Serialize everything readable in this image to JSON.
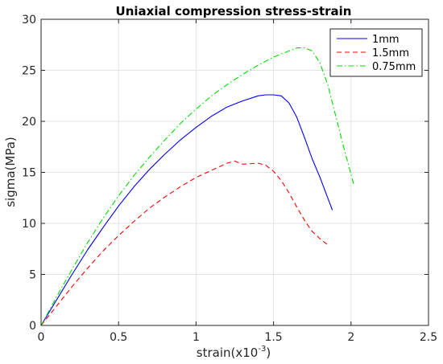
{
  "chart_data": {
    "type": "line",
    "title": "Uniaxial compression stress-strain",
    "xlabel": "strain(x10",
    "xlabel_exp": "-3",
    "xlabel_close": ")",
    "ylabel": "sigma(MPa)",
    "xlim": [
      0,
      2.5
    ],
    "ylim": [
      0,
      30
    ],
    "xticks": [
      0,
      0.5,
      1,
      1.5,
      2,
      2.5
    ],
    "xtick_labels": [
      "0",
      "0.5",
      "1",
      "1.5",
      "2",
      "2.5"
    ],
    "yticks": [
      0,
      5,
      10,
      15,
      20,
      25,
      30
    ],
    "ytick_labels": [
      "0",
      "5",
      "10",
      "15",
      "20",
      "25",
      "30"
    ],
    "grid": true,
    "legend_position": "top-right",
    "series": [
      {
        "name": "1mm",
        "color": "#0000ff",
        "style": "solid",
        "x": [
          0,
          0.1,
          0.2,
          0.3,
          0.4,
          0.5,
          0.6,
          0.7,
          0.8,
          0.9,
          1.0,
          1.1,
          1.2,
          1.3,
          1.4,
          1.45,
          1.5,
          1.55,
          1.6,
          1.65,
          1.7,
          1.75,
          1.8,
          1.85,
          1.88
        ],
        "y": [
          0,
          2.5,
          5.0,
          7.4,
          9.6,
          11.7,
          13.6,
          15.3,
          16.8,
          18.2,
          19.4,
          20.5,
          21.4,
          22.0,
          22.5,
          22.6,
          22.6,
          22.5,
          21.8,
          20.4,
          18.4,
          16.3,
          14.5,
          12.5,
          11.3
        ]
      },
      {
        "name": "1.5mm",
        "color": "#ff0000",
        "style": "dashed",
        "x": [
          0,
          0.1,
          0.2,
          0.3,
          0.4,
          0.5,
          0.6,
          0.7,
          0.8,
          0.9,
          1.0,
          1.1,
          1.2,
          1.25,
          1.3,
          1.4,
          1.45,
          1.5,
          1.55,
          1.6,
          1.65,
          1.7,
          1.75,
          1.8,
          1.85
        ],
        "y": [
          0,
          1.9,
          3.8,
          5.6,
          7.3,
          8.8,
          10.2,
          11.5,
          12.6,
          13.6,
          14.5,
          15.2,
          15.9,
          16.1,
          15.8,
          15.9,
          15.7,
          15.1,
          14.2,
          13.0,
          11.6,
          10.3,
          9.2,
          8.5,
          7.9
        ]
      },
      {
        "name": "0.75mm",
        "color": "#00dd00",
        "style": "dashdot",
        "x": [
          0,
          0.1,
          0.2,
          0.3,
          0.4,
          0.5,
          0.6,
          0.7,
          0.8,
          0.9,
          1.0,
          1.1,
          1.2,
          1.3,
          1.4,
          1.5,
          1.6,
          1.65,
          1.7,
          1.75,
          1.8,
          1.85,
          1.9,
          1.95,
          2.0,
          2.02
        ],
        "y": [
          0,
          2.8,
          5.5,
          8.1,
          10.5,
          12.7,
          14.7,
          16.5,
          18.2,
          19.8,
          21.2,
          22.5,
          23.6,
          24.6,
          25.5,
          26.3,
          26.9,
          27.2,
          27.2,
          26.9,
          25.7,
          23.6,
          20.6,
          17.6,
          14.8,
          13.7
        ]
      }
    ]
  }
}
